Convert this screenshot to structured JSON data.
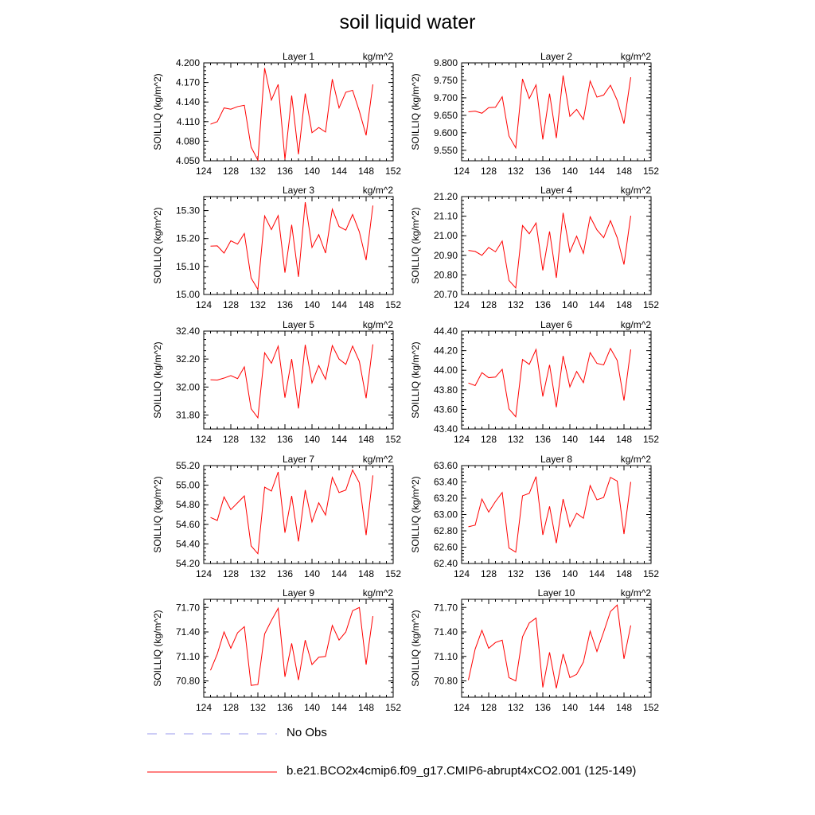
{
  "title": "soil liquid water",
  "legend": [
    {
      "label": "No Obs",
      "color": "#9999ee",
      "style": "dashed"
    },
    {
      "label": "b.e21.BCO2x4cmip6.f09_g17.CMIP6-abrupt4xCO2.001 (125-149)",
      "color": "#ff0000",
      "style": "solid"
    }
  ],
  "chart_data": [
    {
      "type": "line",
      "title": "Layer 1",
      "units": "kg/m^2",
      "ylabel": "SOILLIQ  (kg/m^2)",
      "xlim": [
        124,
        152
      ],
      "ylim": [
        4.05,
        4.2
      ],
      "xticks": [
        124,
        128,
        132,
        136,
        140,
        144,
        148,
        152
      ],
      "xtick_labels": [
        "124",
        "128",
        "132",
        "136",
        "140",
        "144",
        "148",
        "152"
      ],
      "yticks": [
        4.05,
        4.08,
        4.11,
        4.14,
        4.17,
        4.2
      ],
      "ytick_labels": [
        "4.050",
        "4.080",
        "4.110",
        "4.140",
        "4.170",
        "4.200"
      ],
      "x": [
        125,
        126,
        127,
        128,
        129,
        130,
        131,
        132,
        133,
        134,
        135,
        136,
        137,
        138,
        139,
        140,
        141,
        142,
        143,
        144,
        145,
        146,
        147,
        148,
        149
      ],
      "series": [
        {
          "name": "b.e21.BCO2x4cmip6.f09_g17.CMIP6-abrupt4xCO2.001 (125-149)",
          "color": "#ff0000",
          "values": [
            4.106,
            4.11,
            4.131,
            4.129,
            4.133,
            4.135,
            4.071,
            4.051,
            4.192,
            4.143,
            4.167,
            4.052,
            4.15,
            4.06,
            4.153,
            4.093,
            4.101,
            4.094,
            4.175,
            4.131,
            4.155,
            4.158,
            4.126,
            4.089,
            4.167
          ]
        }
      ]
    },
    {
      "type": "line",
      "title": "Layer 2",
      "units": "kg/m^2",
      "ylabel": "SOILLIQ  (kg/m^2)",
      "xlim": [
        124,
        152
      ],
      "ylim": [
        9.52,
        9.8
      ],
      "xticks": [
        124,
        128,
        132,
        136,
        140,
        144,
        148,
        152
      ],
      "xtick_labels": [
        "124",
        "128",
        "132",
        "136",
        "140",
        "144",
        "148",
        "152"
      ],
      "yticks": [
        9.55,
        9.6,
        9.65,
        9.7,
        9.75,
        9.8
      ],
      "ytick_labels": [
        "9.550",
        "9.600",
        "9.650",
        "9.700",
        "9.750",
        "9.800"
      ],
      "x": [
        125,
        126,
        127,
        128,
        129,
        130,
        131,
        132,
        133,
        134,
        135,
        136,
        137,
        138,
        139,
        140,
        141,
        142,
        143,
        144,
        145,
        146,
        147,
        148,
        149
      ],
      "series": [
        {
          "name": "b.e21.BCO2x4cmip6.f09_g17.CMIP6-abrupt4xCO2.001 (125-149)",
          "color": "#ff0000",
          "values": [
            9.66,
            9.662,
            9.656,
            9.672,
            9.673,
            9.703,
            9.591,
            9.557,
            9.754,
            9.698,
            9.737,
            9.581,
            9.712,
            9.585,
            9.764,
            9.647,
            9.667,
            9.638,
            9.748,
            9.702,
            9.708,
            9.736,
            9.693,
            9.626,
            9.759
          ]
        }
      ]
    },
    {
      "type": "line",
      "title": "Layer 3",
      "units": "kg/m^2",
      "ylabel": "SOILLIQ  (kg/m^2)",
      "xlim": [
        124,
        152
      ],
      "ylim": [
        15.0,
        15.35
      ],
      "xticks": [
        124,
        128,
        132,
        136,
        140,
        144,
        148,
        152
      ],
      "xtick_labels": [
        "124",
        "128",
        "132",
        "136",
        "140",
        "144",
        "148",
        "152"
      ],
      "yticks": [
        15.0,
        15.1,
        15.2,
        15.3
      ],
      "ytick_labels": [
        "15.00",
        "15.10",
        "15.20",
        "15.30"
      ],
      "x": [
        125,
        126,
        127,
        128,
        129,
        130,
        131,
        132,
        133,
        134,
        135,
        136,
        137,
        138,
        139,
        140,
        141,
        142,
        143,
        144,
        145,
        146,
        147,
        148,
        149
      ],
      "series": [
        {
          "name": "b.e21.BCO2x4cmip6.f09_g17.CMIP6-abrupt4xCO2.001 (125-149)",
          "color": "#ff0000",
          "values": [
            15.173,
            15.174,
            15.148,
            15.192,
            15.18,
            15.218,
            15.059,
            15.018,
            15.281,
            15.232,
            15.282,
            15.078,
            15.249,
            15.063,
            15.33,
            15.168,
            15.214,
            15.148,
            15.305,
            15.243,
            15.23,
            15.286,
            15.224,
            15.123,
            15.318
          ]
        }
      ]
    },
    {
      "type": "line",
      "title": "Layer 4",
      "units": "kg/m^2",
      "ylabel": "SOILLIQ  (kg/m^2)",
      "xlim": [
        124,
        152
      ],
      "ylim": [
        20.7,
        21.2
      ],
      "xticks": [
        124,
        128,
        132,
        136,
        140,
        144,
        148,
        152
      ],
      "xtick_labels": [
        "124",
        "128",
        "132",
        "136",
        "140",
        "144",
        "148",
        "152"
      ],
      "yticks": [
        20.7,
        20.8,
        20.9,
        21.0,
        21.1,
        21.2
      ],
      "ytick_labels": [
        "20.70",
        "20.80",
        "20.90",
        "21.00",
        "21.10",
        "21.20"
      ],
      "x": [
        125,
        126,
        127,
        128,
        129,
        130,
        131,
        132,
        133,
        134,
        135,
        136,
        137,
        138,
        139,
        140,
        141,
        142,
        143,
        144,
        145,
        146,
        147,
        148,
        149
      ],
      "series": [
        {
          "name": "b.e21.BCO2x4cmip6.f09_g17.CMIP6-abrupt4xCO2.001 (125-149)",
          "color": "#ff0000",
          "values": [
            20.925,
            20.92,
            20.9,
            20.94,
            20.918,
            20.973,
            20.772,
            20.733,
            21.052,
            21.01,
            21.065,
            20.823,
            21.022,
            20.785,
            21.117,
            20.917,
            20.998,
            20.91,
            21.097,
            21.03,
            20.99,
            21.077,
            20.99,
            20.853,
            21.102
          ]
        }
      ]
    },
    {
      "type": "line",
      "title": "Layer 5",
      "units": "kg/m^2",
      "ylabel": "SOILLIQ  (kg/m^2)",
      "xlim": [
        124,
        152
      ],
      "ylim": [
        31.7,
        32.4
      ],
      "xticks": [
        124,
        128,
        132,
        136,
        140,
        144,
        148,
        152
      ],
      "xtick_labels": [
        "124",
        "128",
        "132",
        "136",
        "140",
        "144",
        "148",
        "152"
      ],
      "yticks": [
        31.8,
        32.0,
        32.2,
        32.4
      ],
      "ytick_labels": [
        "31.80",
        "32.00",
        "32.20",
        "32.40"
      ],
      "x": [
        125,
        126,
        127,
        128,
        129,
        130,
        131,
        132,
        133,
        134,
        135,
        136,
        137,
        138,
        139,
        140,
        141,
        142,
        143,
        144,
        145,
        146,
        147,
        148,
        149
      ],
      "series": [
        {
          "name": "b.e21.BCO2x4cmip6.f09_g17.CMIP6-abrupt4xCO2.001 (125-149)",
          "color": "#ff0000",
          "values": [
            32.052,
            32.05,
            32.064,
            32.082,
            32.06,
            32.144,
            31.845,
            31.78,
            32.245,
            32.17,
            32.292,
            31.924,
            32.2,
            31.847,
            32.302,
            32.03,
            32.154,
            32.056,
            32.297,
            32.2,
            32.162,
            32.293,
            32.184,
            31.92,
            32.305
          ]
        }
      ]
    },
    {
      "type": "line",
      "title": "Layer 6",
      "units": "kg/m^2",
      "ylabel": "SOILLIQ  (kg/m^2)",
      "xlim": [
        124,
        152
      ],
      "ylim": [
        43.4,
        44.4
      ],
      "xticks": [
        124,
        128,
        132,
        136,
        140,
        144,
        148,
        152
      ],
      "xtick_labels": [
        "124",
        "128",
        "132",
        "136",
        "140",
        "144",
        "148",
        "152"
      ],
      "yticks": [
        43.4,
        43.6,
        43.8,
        44.0,
        44.2,
        44.4
      ],
      "ytick_labels": [
        "43.40",
        "43.60",
        "43.80",
        "44.00",
        "44.20",
        "44.40"
      ],
      "x": [
        125,
        126,
        127,
        128,
        129,
        130,
        131,
        132,
        133,
        134,
        135,
        136,
        137,
        138,
        139,
        140,
        141,
        142,
        143,
        144,
        145,
        146,
        147,
        148,
        149
      ],
      "series": [
        {
          "name": "b.e21.BCO2x4cmip6.f09_g17.CMIP6-abrupt4xCO2.001 (125-149)",
          "color": "#ff0000",
          "values": [
            43.87,
            43.843,
            43.975,
            43.924,
            43.93,
            44.01,
            43.605,
            43.525,
            44.11,
            44.06,
            44.213,
            43.732,
            44.055,
            43.622,
            44.146,
            43.83,
            43.988,
            43.873,
            44.18,
            44.07,
            44.055,
            44.223,
            44.1,
            43.69,
            44.212
          ]
        }
      ]
    },
    {
      "type": "line",
      "title": "Layer 7",
      "units": "kg/m^2",
      "ylabel": "SOILLIQ  (kg/m^2)",
      "xlim": [
        124,
        152
      ],
      "ylim": [
        54.2,
        55.2
      ],
      "xticks": [
        124,
        128,
        132,
        136,
        140,
        144,
        148,
        152
      ],
      "xtick_labels": [
        "124",
        "128",
        "132",
        "136",
        "140",
        "144",
        "148",
        "152"
      ],
      "yticks": [
        54.2,
        54.4,
        54.6,
        54.8,
        55.0,
        55.2
      ],
      "ytick_labels": [
        "54.20",
        "54.40",
        "54.60",
        "54.80",
        "55.00",
        "55.20"
      ],
      "x": [
        125,
        126,
        127,
        128,
        129,
        130,
        131,
        132,
        133,
        134,
        135,
        136,
        137,
        138,
        139,
        140,
        141,
        142,
        143,
        144,
        145,
        146,
        147,
        148,
        149
      ],
      "series": [
        {
          "name": "b.e21.BCO2x4cmip6.f09_g17.CMIP6-abrupt4xCO2.001 (125-149)",
          "color": "#ff0000",
          "values": [
            54.67,
            54.64,
            54.88,
            54.75,
            54.82,
            54.89,
            54.38,
            54.3,
            54.98,
            54.94,
            55.135,
            54.515,
            54.89,
            54.425,
            54.95,
            54.625,
            54.82,
            54.695,
            55.08,
            54.925,
            54.95,
            55.155,
            55.025,
            54.49,
            55.1
          ]
        }
      ]
    },
    {
      "type": "line",
      "title": "Layer 8",
      "units": "kg/m^2",
      "ylabel": "SOILLIQ  (kg/m^2)",
      "xlim": [
        124,
        152
      ],
      "ylim": [
        62.4,
        63.6
      ],
      "xticks": [
        124,
        128,
        132,
        136,
        140,
        144,
        148,
        152
      ],
      "xtick_labels": [
        "124",
        "128",
        "132",
        "136",
        "140",
        "144",
        "148",
        "152"
      ],
      "yticks": [
        62.4,
        62.6,
        62.8,
        63.0,
        63.2,
        63.4,
        63.6
      ],
      "ytick_labels": [
        "62.40",
        "62.60",
        "62.80",
        "63.00",
        "63.20",
        "63.40",
        "63.60"
      ],
      "x": [
        125,
        126,
        127,
        128,
        129,
        130,
        131,
        132,
        133,
        134,
        135,
        136,
        137,
        138,
        139,
        140,
        141,
        142,
        143,
        144,
        145,
        146,
        147,
        148,
        149
      ],
      "series": [
        {
          "name": "b.e21.BCO2x4cmip6.f09_g17.CMIP6-abrupt4xCO2.001 (125-149)",
          "color": "#ff0000",
          "values": [
            62.85,
            62.87,
            63.19,
            63.03,
            63.16,
            63.27,
            62.59,
            62.54,
            63.23,
            63.26,
            63.465,
            62.75,
            63.1,
            62.65,
            63.19,
            62.85,
            63.015,
            62.955,
            63.355,
            63.18,
            63.21,
            63.455,
            63.41,
            62.76,
            63.4
          ]
        }
      ]
    },
    {
      "type": "line",
      "title": "Layer 9",
      "units": "kg/m^2",
      "ylabel": "SOILLIQ  (kg/m^2)",
      "xlim": [
        124,
        152
      ],
      "ylim": [
        70.6,
        71.8
      ],
      "xticks": [
        124,
        128,
        132,
        136,
        140,
        144,
        148,
        152
      ],
      "xtick_labels": [
        "124",
        "128",
        "132",
        "136",
        "140",
        "144",
        "148",
        "152"
      ],
      "yticks": [
        70.8,
        71.1,
        71.4,
        71.7
      ],
      "ytick_labels": [
        "70.80",
        "71.10",
        "71.40",
        "71.70"
      ],
      "x": [
        125,
        126,
        127,
        128,
        129,
        130,
        131,
        132,
        133,
        134,
        135,
        136,
        137,
        138,
        139,
        140,
        141,
        142,
        143,
        144,
        145,
        146,
        147,
        148,
        149
      ],
      "series": [
        {
          "name": "b.e21.BCO2x4cmip6.f09_g17.CMIP6-abrupt4xCO2.001 (125-149)",
          "color": "#ff0000",
          "values": [
            70.93,
            71.13,
            71.4,
            71.2,
            71.39,
            71.465,
            70.745,
            70.755,
            71.375,
            71.54,
            71.69,
            70.85,
            71.26,
            70.81,
            71.3,
            71.0,
            71.09,
            71.1,
            71.48,
            71.3,
            71.4,
            71.66,
            71.7,
            71.0,
            71.595
          ]
        }
      ]
    },
    {
      "type": "line",
      "title": "Layer 10",
      "units": "kg/m^2",
      "ylabel": "SOILLIQ  (kg/m^2)",
      "xlim": [
        124,
        152
      ],
      "ylim": [
        70.6,
        71.8
      ],
      "xticks": [
        124,
        128,
        132,
        136,
        140,
        144,
        148,
        152
      ],
      "xtick_labels": [
        "124",
        "128",
        "132",
        "136",
        "140",
        "144",
        "148",
        "152"
      ],
      "yticks": [
        70.8,
        71.1,
        71.4,
        71.7
      ],
      "ytick_labels": [
        "70.80",
        "71.10",
        "71.40",
        "71.70"
      ],
      "x": [
        125,
        126,
        127,
        128,
        129,
        130,
        131,
        132,
        133,
        134,
        135,
        136,
        137,
        138,
        139,
        140,
        141,
        142,
        143,
        144,
        145,
        146,
        147,
        148,
        149
      ],
      "series": [
        {
          "name": "b.e21.BCO2x4cmip6.f09_g17.CMIP6-abrupt4xCO2.001 (125-149)",
          "color": "#ff0000",
          "values": [
            70.81,
            71.19,
            71.42,
            71.2,
            71.27,
            71.3,
            70.84,
            70.8,
            71.34,
            71.51,
            71.57,
            70.72,
            71.15,
            70.71,
            71.13,
            70.84,
            70.88,
            71.03,
            71.41,
            71.16,
            71.4,
            71.65,
            71.73,
            71.07,
            71.48
          ]
        }
      ]
    }
  ]
}
